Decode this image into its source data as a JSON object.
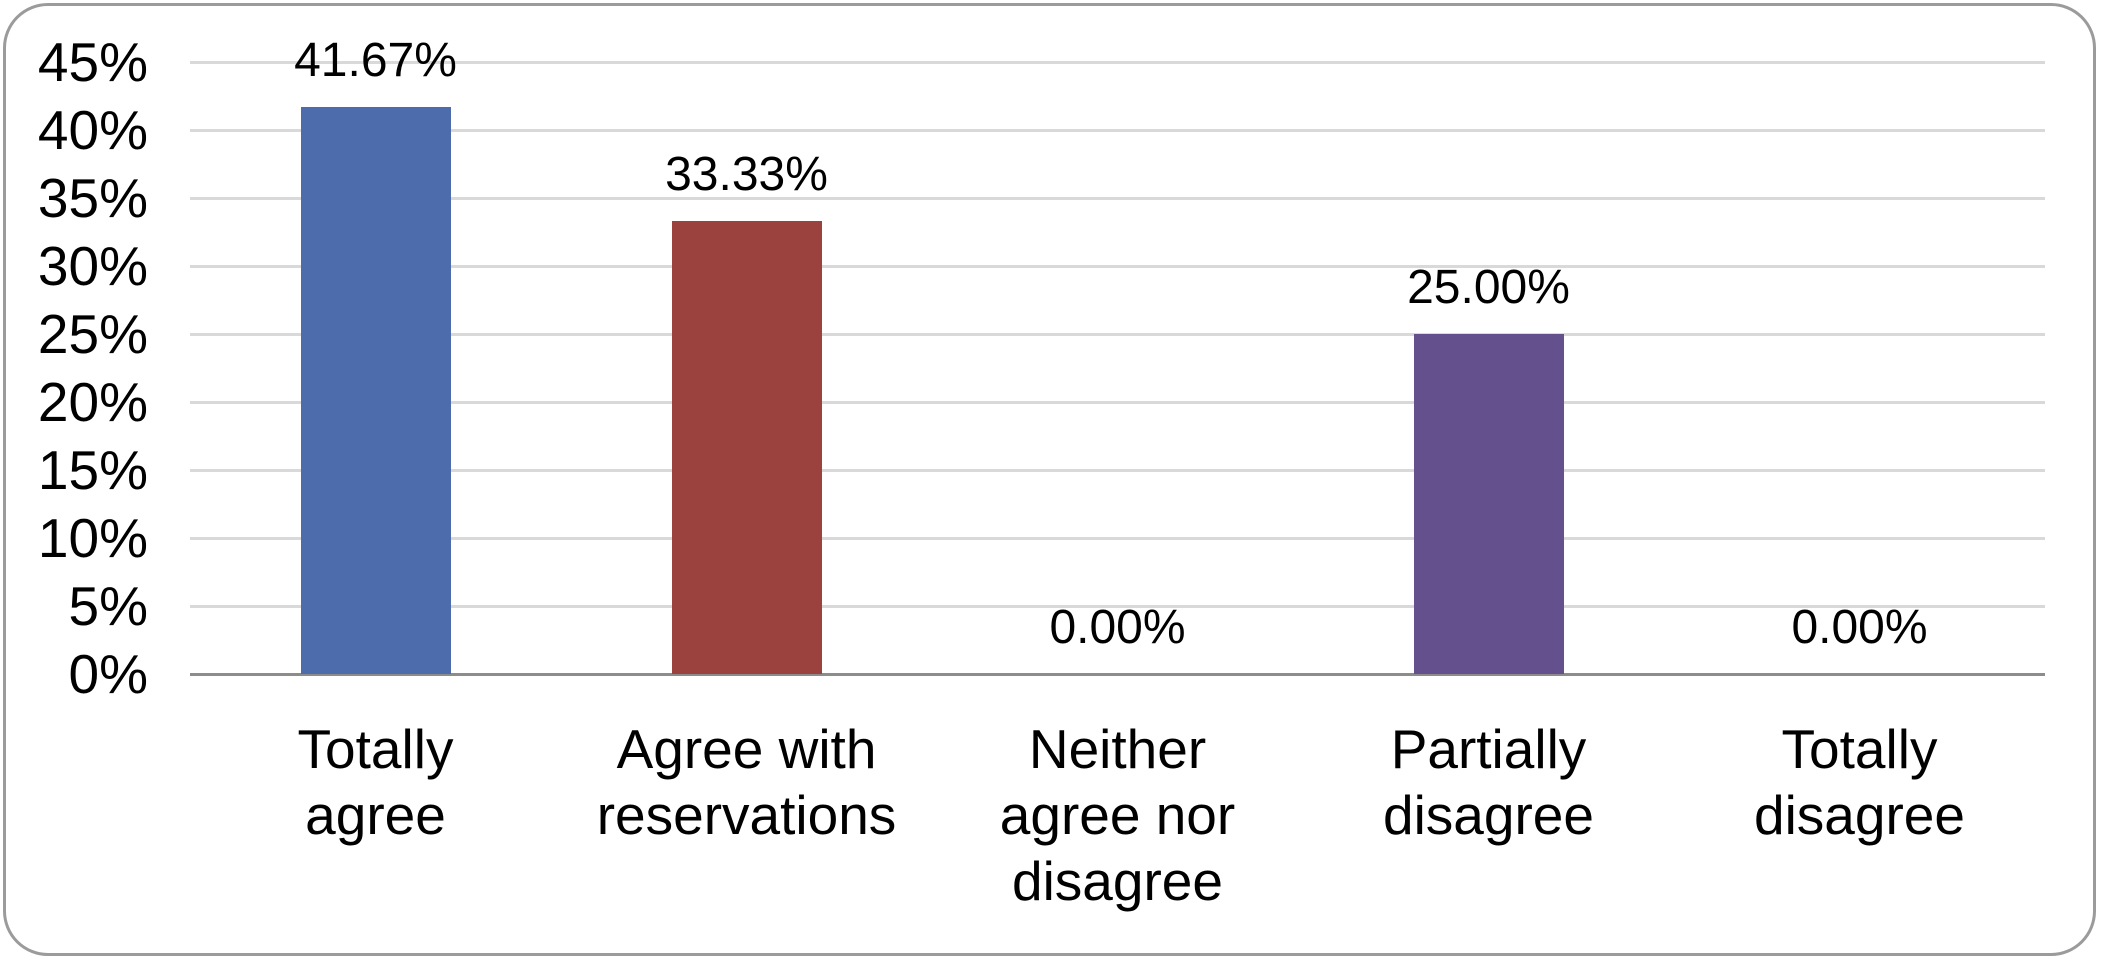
{
  "chart_data": {
    "type": "bar",
    "title": "",
    "xlabel": "",
    "ylabel": "",
    "categories": [
      "Totally\nagree",
      "Agree with\nreservations",
      "Neither\nagree nor\ndisagree",
      "Partially\ndisagree",
      "Totally\ndisagree"
    ],
    "values": [
      41.67,
      33.33,
      0,
      25,
      0
    ],
    "value_labels": [
      "41.67%",
      "33.33%",
      "0.00%",
      "25.00%",
      "0.00%"
    ],
    "bar_colors": [
      "#4D6CAC",
      "#9B413E",
      null,
      "#65508E",
      null
    ],
    "ylim": [
      0,
      45
    ],
    "ytick_step": 5,
    "ytick_labels": [
      "0%",
      "5%",
      "10%",
      "15%",
      "20%",
      "25%",
      "30%",
      "35%",
      "40%",
      "45%"
    ],
    "grid": "horizontal-only",
    "legend": "none"
  },
  "colors": {
    "background": "#FFFFFF",
    "gridline": "#D9D9D9",
    "axis_line": "#8C8C8C",
    "frame_border": "#9B9B9B",
    "text": "#000000"
  }
}
